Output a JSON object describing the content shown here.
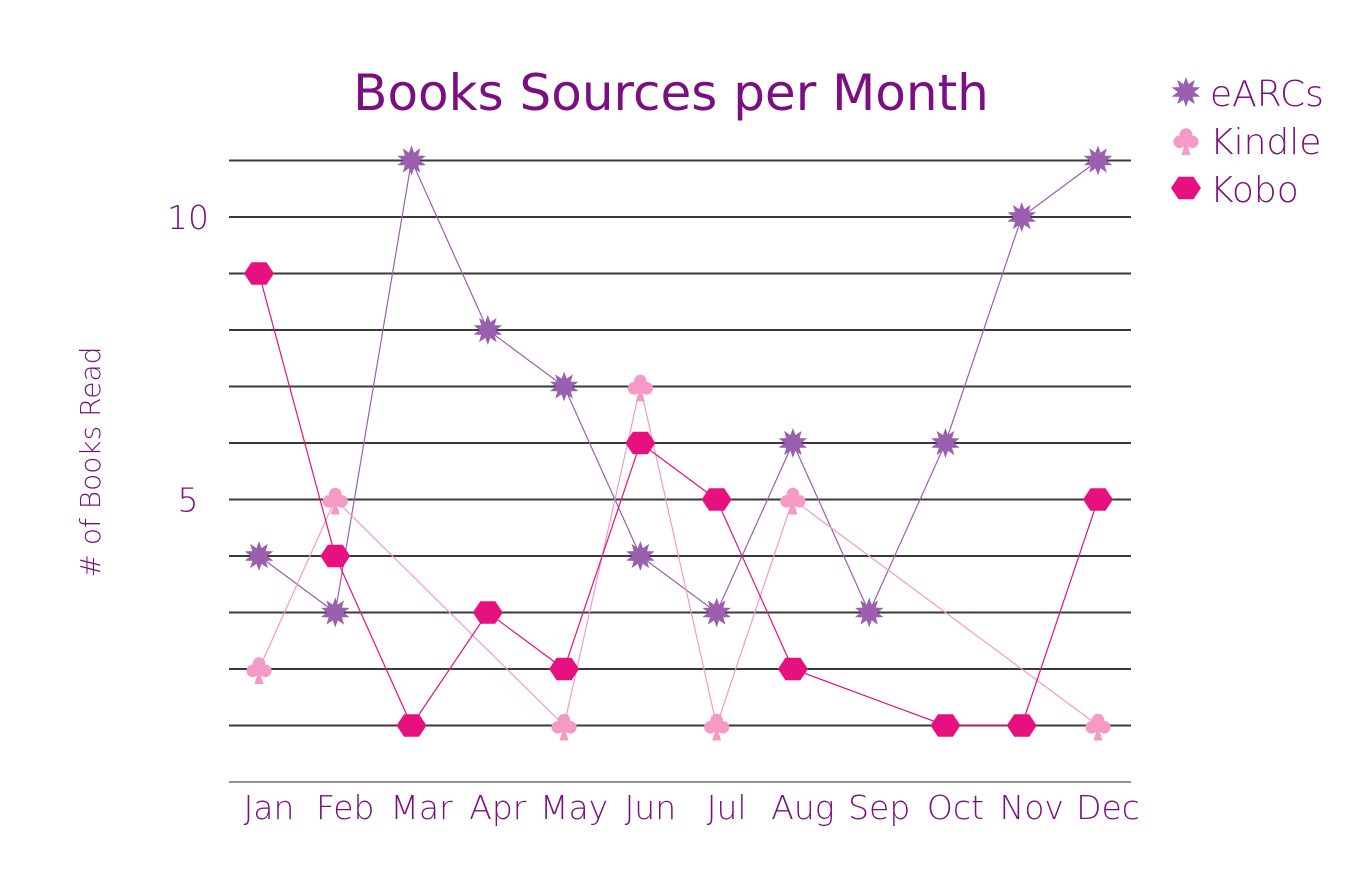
{
  "chart_data": {
    "type": "line",
    "title": "Books Sources per Month",
    "xlabel": "",
    "ylabel": "# of Books Read",
    "categories": [
      "Jan",
      "Feb",
      "Mar",
      "Apr",
      "May",
      "Jun",
      "Jul",
      "Aug",
      "Sep",
      "Oct",
      "Nov",
      "Dec"
    ],
    "ylim": [
      0,
      11
    ],
    "yticks": [
      {
        "value": 5,
        "label": "5"
      },
      {
        "value": 10,
        "label": "10"
      }
    ],
    "grid": true,
    "legend_position": "top-right",
    "series": [
      {
        "name": "eARCs",
        "marker": "star-icon",
        "color": "#9b5fb0",
        "values": [
          4,
          3,
          11,
          8,
          7,
          4,
          3,
          6,
          3,
          6,
          10,
          11
        ]
      },
      {
        "name": "Kindle",
        "marker": "club-icon",
        "color": "#f59ac5",
        "values": [
          2,
          5,
          null,
          null,
          1,
          7,
          1,
          5,
          null,
          null,
          null,
          1
        ]
      },
      {
        "name": "Kobo",
        "marker": "hexagon-icon",
        "color": "#e6117f",
        "values": [
          9,
          4,
          1,
          3,
          2,
          6,
          5,
          2,
          null,
          1,
          1,
          5
        ]
      }
    ]
  }
}
